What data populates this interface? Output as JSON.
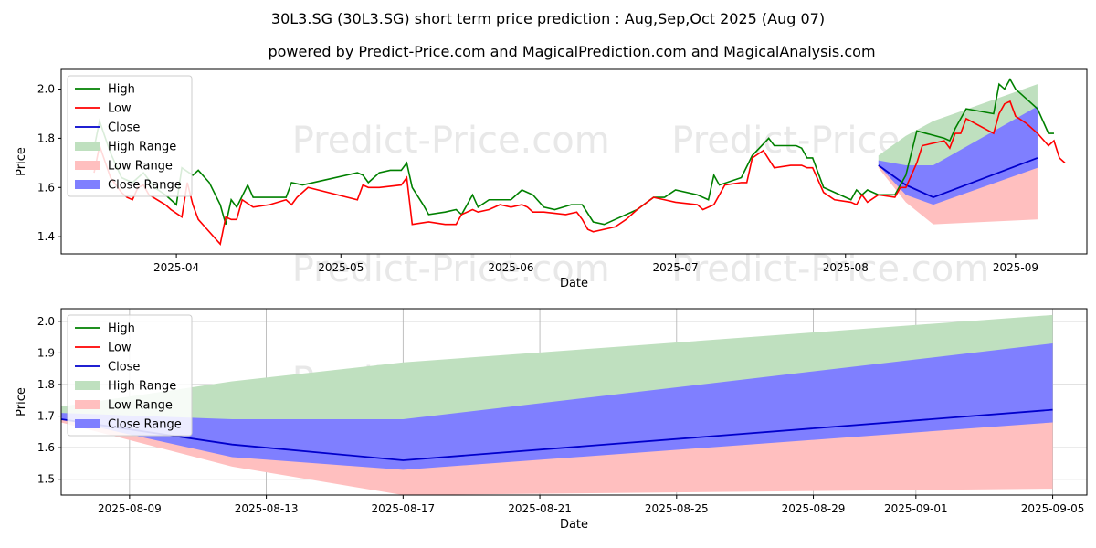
{
  "header": {
    "title": "30L3.SG (30L3.SG) short term price prediction : Aug,Sep,Oct 2025 (Aug 07)",
    "subtitle": "powered by Predict-Price.com and MagicalPrediction.com and MagicalAnalysis.com"
  },
  "watermark": "Predict-Price.com",
  "colors": {
    "high": "#008000",
    "low": "#ff0000",
    "close": "#0000cc",
    "high_range": "#bfe0bf",
    "low_range": "#ffbfbf",
    "close_range": "#7f7fff",
    "grid": "#b0b0b0"
  },
  "chart_data": [
    {
      "type": "line",
      "xlabel": "Date",
      "ylabel": "Price",
      "xlim": [
        "2025-03-11",
        "2025-09-14"
      ],
      "ylim": [
        1.33,
        2.08
      ],
      "x_ticks": [
        "2025-04",
        "2025-05",
        "2025-06",
        "2025-07",
        "2025-08",
        "2025-09"
      ],
      "y_ticks": [
        "1.4",
        "1.6",
        "1.8",
        "2.0"
      ],
      "legend": [
        "High",
        "Low",
        "Close",
        "High Range",
        "Low Range",
        "Close Range"
      ],
      "legend_position": "upper-left",
      "grid": false,
      "series": [
        {
          "name": "High",
          "points": [
            [
              "2025-03-17",
              1.76
            ],
            [
              "2025-03-18",
              1.87
            ],
            [
              "2025-03-20",
              1.74
            ],
            [
              "2025-03-22",
              1.64
            ],
            [
              "2025-03-24",
              1.62
            ],
            [
              "2025-03-26",
              1.66
            ],
            [
              "2025-03-28",
              1.6
            ],
            [
              "2025-03-30",
              1.57
            ],
            [
              "2025-04-01",
              1.53
            ],
            [
              "2025-04-02",
              1.68
            ],
            [
              "2025-04-04",
              1.65
            ],
            [
              "2025-04-05",
              1.67
            ],
            [
              "2025-04-07",
              1.62
            ],
            [
              "2025-04-09",
              1.53
            ],
            [
              "2025-04-10",
              1.45
            ],
            [
              "2025-04-11",
              1.55
            ],
            [
              "2025-04-12",
              1.52
            ],
            [
              "2025-04-14",
              1.61
            ],
            [
              "2025-04-15",
              1.56
            ],
            [
              "2025-04-16",
              1.56
            ],
            [
              "2025-04-18",
              1.56
            ],
            [
              "2025-04-21",
              1.56
            ],
            [
              "2025-04-22",
              1.62
            ],
            [
              "2025-04-24",
              1.61
            ],
            [
              "2025-04-28",
              1.63
            ],
            [
              "2025-05-04",
              1.66
            ],
            [
              "2025-05-05",
              1.65
            ],
            [
              "2025-05-06",
              1.62
            ],
            [
              "2025-05-08",
              1.66
            ],
            [
              "2025-05-10",
              1.67
            ],
            [
              "2025-05-12",
              1.67
            ],
            [
              "2025-05-13",
              1.7
            ],
            [
              "2025-05-14",
              1.6
            ],
            [
              "2025-05-16",
              1.53
            ],
            [
              "2025-05-17",
              1.49
            ],
            [
              "2025-05-20",
              1.5
            ],
            [
              "2025-05-22",
              1.51
            ],
            [
              "2025-05-23",
              1.49
            ],
            [
              "2025-05-25",
              1.57
            ],
            [
              "2025-05-26",
              1.52
            ],
            [
              "2025-05-28",
              1.55
            ],
            [
              "2025-05-30",
              1.55
            ],
            [
              "2025-06-01",
              1.55
            ],
            [
              "2025-06-03",
              1.59
            ],
            [
              "2025-06-05",
              1.57
            ],
            [
              "2025-06-07",
              1.52
            ],
            [
              "2025-06-09",
              1.51
            ],
            [
              "2025-06-12",
              1.53
            ],
            [
              "2025-06-14",
              1.53
            ],
            [
              "2025-06-16",
              1.46
            ],
            [
              "2025-06-18",
              1.45
            ],
            [
              "2025-06-20",
              1.47
            ],
            [
              "2025-06-24",
              1.51
            ],
            [
              "2025-06-27",
              1.56
            ],
            [
              "2025-06-29",
              1.56
            ],
            [
              "2025-07-01",
              1.59
            ],
            [
              "2025-07-05",
              1.57
            ],
            [
              "2025-07-07",
              1.55
            ],
            [
              "2025-07-08",
              1.65
            ],
            [
              "2025-07-09",
              1.61
            ],
            [
              "2025-07-13",
              1.64
            ],
            [
              "2025-07-15",
              1.73
            ],
            [
              "2025-07-18",
              1.8
            ],
            [
              "2025-07-19",
              1.77
            ],
            [
              "2025-07-23",
              1.77
            ],
            [
              "2025-07-24",
              1.76
            ],
            [
              "2025-07-25",
              1.72
            ],
            [
              "2025-07-26",
              1.72
            ],
            [
              "2025-07-28",
              1.6
            ],
            [
              "2025-07-31",
              1.57
            ],
            [
              "2025-08-02",
              1.55
            ],
            [
              "2025-08-03",
              1.59
            ],
            [
              "2025-08-04",
              1.57
            ],
            [
              "2025-08-05",
              1.59
            ],
            [
              "2025-08-07",
              1.57
            ],
            [
              "2025-08-10",
              1.57
            ],
            [
              "2025-08-12",
              1.65
            ],
            [
              "2025-08-14",
              1.83
            ],
            [
              "2025-08-19",
              1.8
            ],
            [
              "2025-08-20",
              1.79
            ],
            [
              "2025-08-21",
              1.84
            ],
            [
              "2025-08-23",
              1.92
            ],
            [
              "2025-08-28",
              1.9
            ],
            [
              "2025-08-29",
              2.02
            ],
            [
              "2025-08-30",
              2.0
            ],
            [
              "2025-08-31",
              2.04
            ],
            [
              "2025-09-01",
              2.0
            ],
            [
              "2025-09-03",
              1.96
            ],
            [
              "2025-09-05",
              1.92
            ],
            [
              "2025-09-07",
              1.82
            ],
            [
              "2025-09-08",
              1.82
            ]
          ]
        },
        {
          "name": "Low",
          "points": [
            [
              "2025-03-17",
              1.66
            ],
            [
              "2025-03-18",
              1.77
            ],
            [
              "2025-03-20",
              1.64
            ],
            [
              "2025-03-22",
              1.58
            ],
            [
              "2025-03-23",
              1.56
            ],
            [
              "2025-03-24",
              1.55
            ],
            [
              "2025-03-25",
              1.6
            ],
            [
              "2025-03-26",
              1.61
            ],
            [
              "2025-03-27",
              1.57
            ],
            [
              "2025-03-30",
              1.53
            ],
            [
              "2025-03-31",
              1.51
            ],
            [
              "2025-04-02",
              1.48
            ],
            [
              "2025-04-03",
              1.62
            ],
            [
              "2025-04-04",
              1.53
            ],
            [
              "2025-04-05",
              1.47
            ],
            [
              "2025-04-07",
              1.42
            ],
            [
              "2025-04-09",
              1.37
            ],
            [
              "2025-04-10",
              1.48
            ],
            [
              "2025-04-11",
              1.47
            ],
            [
              "2025-04-12",
              1.47
            ],
            [
              "2025-04-13",
              1.55
            ],
            [
              "2025-04-15",
              1.52
            ],
            [
              "2025-04-18",
              1.53
            ],
            [
              "2025-04-21",
              1.55
            ],
            [
              "2025-04-22",
              1.53
            ],
            [
              "2025-04-23",
              1.56
            ],
            [
              "2025-04-25",
              1.6
            ],
            [
              "2025-05-04",
              1.55
            ],
            [
              "2025-05-05",
              1.61
            ],
            [
              "2025-05-06",
              1.6
            ],
            [
              "2025-05-08",
              1.6
            ],
            [
              "2025-05-12",
              1.61
            ],
            [
              "2025-05-13",
              1.64
            ],
            [
              "2025-05-14",
              1.45
            ],
            [
              "2025-05-17",
              1.46
            ],
            [
              "2025-05-20",
              1.45
            ],
            [
              "2025-05-22",
              1.45
            ],
            [
              "2025-05-23",
              1.49
            ],
            [
              "2025-05-25",
              1.51
            ],
            [
              "2025-05-26",
              1.5
            ],
            [
              "2025-05-28",
              1.51
            ],
            [
              "2025-05-30",
              1.53
            ],
            [
              "2025-06-01",
              1.52
            ],
            [
              "2025-06-03",
              1.53
            ],
            [
              "2025-06-04",
              1.52
            ],
            [
              "2025-06-05",
              1.5
            ],
            [
              "2025-06-07",
              1.5
            ],
            [
              "2025-06-11",
              1.49
            ],
            [
              "2025-06-13",
              1.5
            ],
            [
              "2025-06-14",
              1.47
            ],
            [
              "2025-06-15",
              1.43
            ],
            [
              "2025-06-16",
              1.42
            ],
            [
              "2025-06-20",
              1.44
            ],
            [
              "2025-06-22",
              1.47
            ],
            [
              "2025-06-24",
              1.51
            ],
            [
              "2025-06-27",
              1.56
            ],
            [
              "2025-06-29",
              1.55
            ],
            [
              "2025-07-01",
              1.54
            ],
            [
              "2025-07-05",
              1.53
            ],
            [
              "2025-07-06",
              1.51
            ],
            [
              "2025-07-08",
              1.53
            ],
            [
              "2025-07-10",
              1.61
            ],
            [
              "2025-07-13",
              1.62
            ],
            [
              "2025-07-14",
              1.62
            ],
            [
              "2025-07-15",
              1.72
            ],
            [
              "2025-07-17",
              1.75
            ],
            [
              "2025-07-19",
              1.68
            ],
            [
              "2025-07-22",
              1.69
            ],
            [
              "2025-07-24",
              1.69
            ],
            [
              "2025-07-25",
              1.68
            ],
            [
              "2025-07-26",
              1.68
            ],
            [
              "2025-07-28",
              1.58
            ],
            [
              "2025-07-30",
              1.55
            ],
            [
              "2025-08-02",
              1.54
            ],
            [
              "2025-08-03",
              1.53
            ],
            [
              "2025-08-04",
              1.57
            ],
            [
              "2025-08-05",
              1.54
            ],
            [
              "2025-08-07",
              1.57
            ],
            [
              "2025-08-10",
              1.56
            ],
            [
              "2025-08-11",
              1.6
            ],
            [
              "2025-08-12",
              1.6
            ],
            [
              "2025-08-14",
              1.7
            ],
            [
              "2025-08-15",
              1.77
            ],
            [
              "2025-08-19",
              1.79
            ],
            [
              "2025-08-20",
              1.76
            ],
            [
              "2025-08-21",
              1.82
            ],
            [
              "2025-08-22",
              1.82
            ],
            [
              "2025-08-23",
              1.88
            ],
            [
              "2025-08-28",
              1.82
            ],
            [
              "2025-08-29",
              1.9
            ],
            [
              "2025-08-30",
              1.94
            ],
            [
              "2025-08-31",
              1.95
            ],
            [
              "2025-09-01",
              1.89
            ],
            [
              "2025-09-03",
              1.86
            ],
            [
              "2025-09-05",
              1.82
            ],
            [
              "2025-09-07",
              1.77
            ],
            [
              "2025-09-08",
              1.79
            ],
            [
              "2025-09-09",
              1.72
            ],
            [
              "2025-09-10",
              1.7
            ]
          ]
        }
      ]
    },
    {
      "type": "area",
      "xlabel": "Date",
      "ylabel": "Price",
      "xlim": [
        "2025-08-07",
        "2025-09-06"
      ],
      "ylim": [
        1.45,
        2.04
      ],
      "x_ticks": [
        "2025-08-09",
        "2025-08-13",
        "2025-08-17",
        "2025-08-21",
        "2025-08-25",
        "2025-08-29",
        "2025-09-01",
        "2025-09-05"
      ],
      "y_ticks": [
        "1.5",
        "1.6",
        "1.7",
        "1.8",
        "1.9",
        "2.0"
      ],
      "legend": [
        "High",
        "Low",
        "Close",
        "High Range",
        "Low Range",
        "Close Range"
      ],
      "legend_position": "upper-left",
      "grid": true,
      "forecast": {
        "dates": [
          "2025-08-07",
          "2025-08-12",
          "2025-08-17",
          "2025-09-05"
        ],
        "high_range_upper": [
          1.73,
          1.81,
          1.87,
          2.02
        ],
        "close_range_upper": [
          1.71,
          1.69,
          1.69,
          1.93
        ],
        "close": [
          1.69,
          1.61,
          1.56,
          1.72
        ],
        "close_range_lower": [
          1.69,
          1.57,
          1.53,
          1.68
        ],
        "low_range_lower": [
          1.68,
          1.54,
          1.45,
          1.47
        ]
      }
    }
  ]
}
